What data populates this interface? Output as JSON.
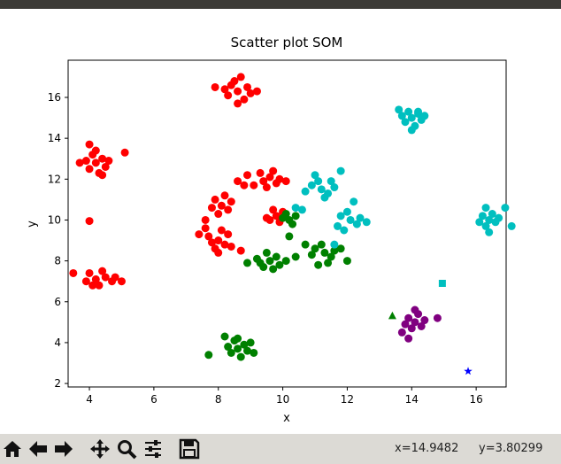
{
  "chart_data": {
    "type": "scatter",
    "title": "Scatter plot SOM",
    "xlabel": "x",
    "ylabel": "y",
    "xlim": [
      3.34,
      16.93
    ],
    "ylim": [
      1.83,
      17.82
    ],
    "xticks": [
      4,
      6,
      8,
      10,
      12,
      14,
      16
    ],
    "yticks": [
      2,
      4,
      6,
      8,
      10,
      12,
      14,
      16
    ],
    "series": [
      {
        "color": "#ff0000",
        "marker": "circle",
        "x": [
          8.6,
          8.3,
          8.9,
          8.5,
          8.8,
          8.2,
          9.0,
          8.6,
          8.7,
          9.2,
          7.9,
          8.4,
          4.2,
          4.0,
          4.4,
          4.1,
          4.5,
          3.9,
          4.3,
          4.6,
          4.2,
          3.7,
          5.1,
          4.0,
          4.4,
          4.0,
          4.2,
          3.9,
          4.5,
          4.3,
          4.0,
          4.7,
          4.4,
          3.5,
          5.0,
          4.1,
          4.8,
          9.4,
          8.9,
          9.1,
          9.6,
          9.8,
          9.3,
          8.8,
          9.9,
          9.5,
          8.6,
          9.7,
          10.1,
          8.1,
          7.9,
          8.3,
          8.0,
          8.4,
          7.8,
          8.2,
          7.6,
          9.8,
          9.6,
          10.0,
          9.7,
          9.5,
          9.9,
          8.0,
          7.7,
          8.2,
          7.9,
          8.3,
          7.8,
          7.4,
          8.7,
          8.1,
          8.4,
          7.6,
          8.0
        ],
        "y": [
          16.3,
          16.1,
          16.5,
          16.8,
          15.9,
          16.4,
          16.2,
          15.7,
          17.0,
          16.3,
          16.5,
          16.6,
          12.8,
          12.5,
          13.0,
          13.2,
          12.6,
          12.9,
          12.3,
          12.9,
          13.4,
          12.8,
          13.3,
          13.7,
          12.2,
          9.95,
          7.1,
          7.0,
          7.2,
          6.8,
          7.4,
          7.0,
          7.5,
          7.4,
          7.0,
          6.8,
          7.2,
          11.9,
          12.2,
          11.7,
          12.1,
          11.8,
          12.3,
          11.7,
          12.0,
          11.6,
          11.9,
          12.4,
          11.9,
          10.7,
          11.0,
          10.5,
          10.3,
          10.9,
          10.6,
          11.2,
          10.0,
          10.2,
          10.0,
          10.4,
          10.5,
          10.1,
          9.9,
          9.0,
          9.2,
          8.8,
          8.6,
          9.3,
          8.9,
          9.3,
          8.5,
          9.5,
          8.7,
          9.6,
          8.4
        ]
      },
      {
        "color": "#008000",
        "marker": "circle",
        "x": [
          8.6,
          8.4,
          8.8,
          8.5,
          8.9,
          8.3,
          8.7,
          9.0,
          8.2,
          7.7,
          8.6,
          9.1,
          9.6,
          9.3,
          9.8,
          9.5,
          9.9,
          9.2,
          9.7,
          10.1,
          8.9,
          9.4,
          10.4,
          11.3,
          11.0,
          11.5,
          11.2,
          11.6,
          10.9,
          11.4,
          11.8,
          11.1,
          10.7,
          12.0,
          10.2,
          10.1,
          10.3,
          10.0,
          10.4,
          10.2
        ],
        "y": [
          3.7,
          3.5,
          3.9,
          4.1,
          3.6,
          3.8,
          3.3,
          4.0,
          4.3,
          3.4,
          4.2,
          3.5,
          8.0,
          7.9,
          8.2,
          8.4,
          7.8,
          8.1,
          7.6,
          8.0,
          7.9,
          7.7,
          8.2,
          8.4,
          8.6,
          8.2,
          8.8,
          8.5,
          8.3,
          7.9,
          8.6,
          7.8,
          8.8,
          8.0,
          10.0,
          10.3,
          9.8,
          10.1,
          10.2,
          9.2
        ]
      },
      {
        "color": "#00bfbf",
        "marker": "circle",
        "x": [
          14.0,
          13.8,
          14.2,
          13.9,
          14.3,
          13.7,
          14.1,
          14.4,
          14.0,
          13.6,
          14.2,
          16.4,
          16.2,
          16.6,
          16.3,
          16.5,
          16.1,
          16.4,
          16.7,
          17.1,
          16.9,
          16.3,
          11.2,
          10.9,
          11.4,
          11.1,
          11.6,
          10.7,
          11.3,
          11.8,
          11.0,
          11.5,
          12.1,
          11.8,
          12.3,
          12.0,
          12.4,
          11.7,
          12.2,
          12.6,
          11.9,
          11.6,
          10.4,
          10.6
        ],
        "y": [
          15.0,
          14.8,
          15.2,
          15.3,
          14.9,
          15.1,
          14.6,
          15.1,
          14.4,
          15.4,
          15.3,
          10.0,
          10.2,
          9.9,
          9.7,
          10.3,
          9.9,
          9.4,
          10.1,
          9.7,
          10.6,
          10.6,
          11.5,
          11.7,
          11.3,
          11.9,
          11.6,
          11.4,
          11.1,
          12.4,
          12.2,
          11.9,
          10.0,
          10.2,
          9.8,
          10.4,
          10.1,
          9.7,
          10.9,
          9.9,
          9.5,
          8.8,
          10.6,
          10.5
        ]
      },
      {
        "color": "#800080",
        "marker": "circle",
        "x": [
          14.1,
          13.9,
          14.3,
          14.0,
          14.2,
          13.8,
          14.4,
          14.8,
          13.9,
          13.7,
          14.1
        ],
        "y": [
          5.0,
          5.2,
          4.8,
          4.7,
          5.4,
          4.9,
          5.1,
          5.2,
          4.2,
          4.5,
          5.6
        ]
      },
      {
        "color": "#008000",
        "marker": "triangle",
        "x": [
          13.4
        ],
        "y": [
          5.3
        ]
      },
      {
        "color": "#00bfbf",
        "marker": "square",
        "x": [
          14.95
        ],
        "y": [
          6.9
        ]
      },
      {
        "color": "#0000ff",
        "marker": "star",
        "x": [
          15.75
        ],
        "y": [
          2.6
        ]
      }
    ]
  },
  "toolbar": {
    "coords": [
      "x=14.9482",
      "y=3.80299"
    ]
  }
}
